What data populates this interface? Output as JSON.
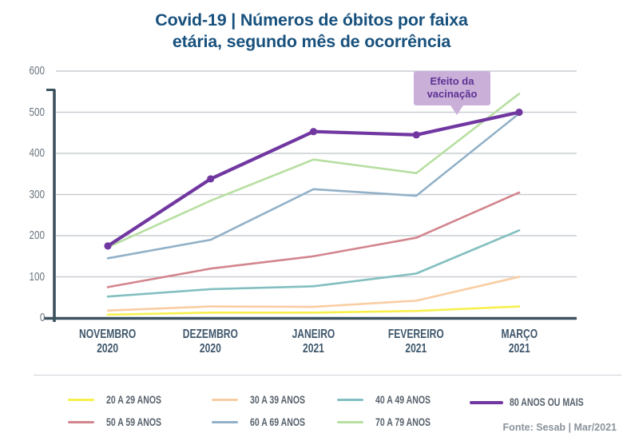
{
  "title": {
    "lines": [
      "Covid-19 | Números de óbitos por faixa",
      "etária, segundo mês de ocorrência"
    ]
  },
  "annotation": {
    "lines": [
      "Efeito da",
      "vacinação"
    ],
    "bg_color": "#cab0d9",
    "text_color": "#5e3193"
  },
  "source": "Fonte: Sesab | Mar/2021",
  "colors": {
    "title": "#18517d",
    "axis": "#3d5360",
    "grid": "#c9cdd2",
    "x_labels": "#3e566b",
    "y_labels": "#6b7580",
    "legend_text": "#57616c",
    "separator": "#cdd1d6",
    "source_text": "#8b939b"
  },
  "chart_data": {
    "type": "line",
    "title": "Covid-19 | Números de óbitos por faixa etária, segundo mês de ocorrência",
    "categories": [
      "NOVEMBRO 2020",
      "DEZEMBRO 2020",
      "JANEIRO 2021",
      "FEVEREIRO 2021",
      "MARÇO 2021"
    ],
    "xlabel": "",
    "ylabel": "",
    "ylim": [
      0,
      600
    ],
    "y_ticks": [
      0,
      100,
      200,
      300,
      400,
      500,
      600
    ],
    "grid": "horizontal",
    "legend_position": "bottom",
    "annotation": {
      "text": "Efeito da vacinação",
      "target_series": "80 ANOS OU MAIS",
      "target_x": "entre FEVEREIRO 2021 e MARÇO 2021"
    },
    "series": [
      {
        "name": "20 A 29 ANOS",
        "color": "#f7f04b",
        "values": [
          8,
          13,
          13,
          17,
          28
        ],
        "width": 2.6,
        "marker": false
      },
      {
        "name": "30 A 39 ANOS",
        "color": "#f9cda3",
        "values": [
          18,
          28,
          27,
          42,
          100
        ],
        "width": 2.6,
        "marker": false
      },
      {
        "name": "40 A 49 ANOS",
        "color": "#83bfc0",
        "values": [
          52,
          70,
          77,
          108,
          213
        ],
        "width": 2.6,
        "marker": false
      },
      {
        "name": "50 A 59 ANOS",
        "color": "#d2858d",
        "values": [
          75,
          120,
          150,
          195,
          305
        ],
        "width": 2.6,
        "marker": false
      },
      {
        "name": "60 A 69 ANOS",
        "color": "#92b1c8",
        "values": [
          145,
          190,
          313,
          297,
          497
        ],
        "width": 2.6,
        "marker": false
      },
      {
        "name": "70 A 79 ANOS",
        "color": "#b7dfa1",
        "values": [
          172,
          285,
          385,
          352,
          545
        ],
        "width": 2.6,
        "marker": false
      },
      {
        "name": "80 ANOS OU MAIS",
        "color": "#7137a1",
        "values": [
          175,
          338,
          453,
          445,
          500
        ],
        "width": 4.2,
        "marker": true
      }
    ]
  }
}
